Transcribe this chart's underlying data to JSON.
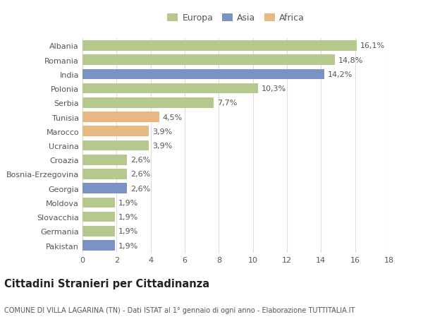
{
  "categories": [
    "Albania",
    "Romania",
    "India",
    "Polonia",
    "Serbia",
    "Tunisia",
    "Marocco",
    "Ucraina",
    "Croazia",
    "Bosnia-Erzegovina",
    "Georgia",
    "Moldova",
    "Slovacchia",
    "Germania",
    "Pakistan"
  ],
  "values": [
    16.1,
    14.8,
    14.2,
    10.3,
    7.7,
    4.5,
    3.9,
    3.9,
    2.6,
    2.6,
    2.6,
    1.9,
    1.9,
    1.9,
    1.9
  ],
  "labels": [
    "16,1%",
    "14,8%",
    "14,2%",
    "10,3%",
    "7,7%",
    "4,5%",
    "3,9%",
    "3,9%",
    "2,6%",
    "2,6%",
    "2,6%",
    "1,9%",
    "1,9%",
    "1,9%",
    "1,9%"
  ],
  "continents": [
    "Europa",
    "Europa",
    "Asia",
    "Europa",
    "Europa",
    "Africa",
    "Africa",
    "Europa",
    "Europa",
    "Europa",
    "Asia",
    "Europa",
    "Europa",
    "Europa",
    "Asia"
  ],
  "colors": {
    "Europa": "#b5c98e",
    "Asia": "#7b93c4",
    "Africa": "#e8b882"
  },
  "xlim": [
    0,
    18
  ],
  "xticks": [
    0,
    2,
    4,
    6,
    8,
    10,
    12,
    14,
    16,
    18
  ],
  "title": "Cittadini Stranieri per Cittadinanza",
  "subtitle": "COMUNE DI VILLA LAGARINA (TN) - Dati ISTAT al 1° gennaio di ogni anno - Elaborazione TUTTITALIA.IT",
  "bg_color": "#ffffff",
  "grid_color": "#dddddd",
  "bar_height": 0.72,
  "label_fontsize": 8.0,
  "tick_fontsize": 8.0,
  "title_fontsize": 10.5,
  "subtitle_fontsize": 7.0
}
